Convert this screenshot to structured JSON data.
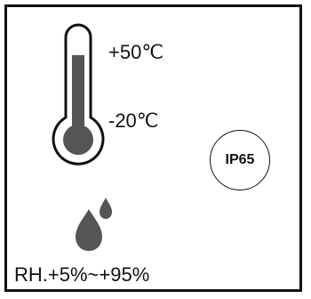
{
  "specs": {
    "temperature": {
      "max_label": "+50℃",
      "min_label": "-20℃"
    },
    "ingress_protection": {
      "label": "IP65"
    },
    "humidity": {
      "label": "RH.+5%~+95%"
    }
  },
  "icons": {
    "thermometer": "thermometer-icon",
    "water_drops": "water-drop-icon"
  },
  "colors": {
    "line": "#111111",
    "icon_fill": "#555555",
    "background": "#ffffff"
  }
}
